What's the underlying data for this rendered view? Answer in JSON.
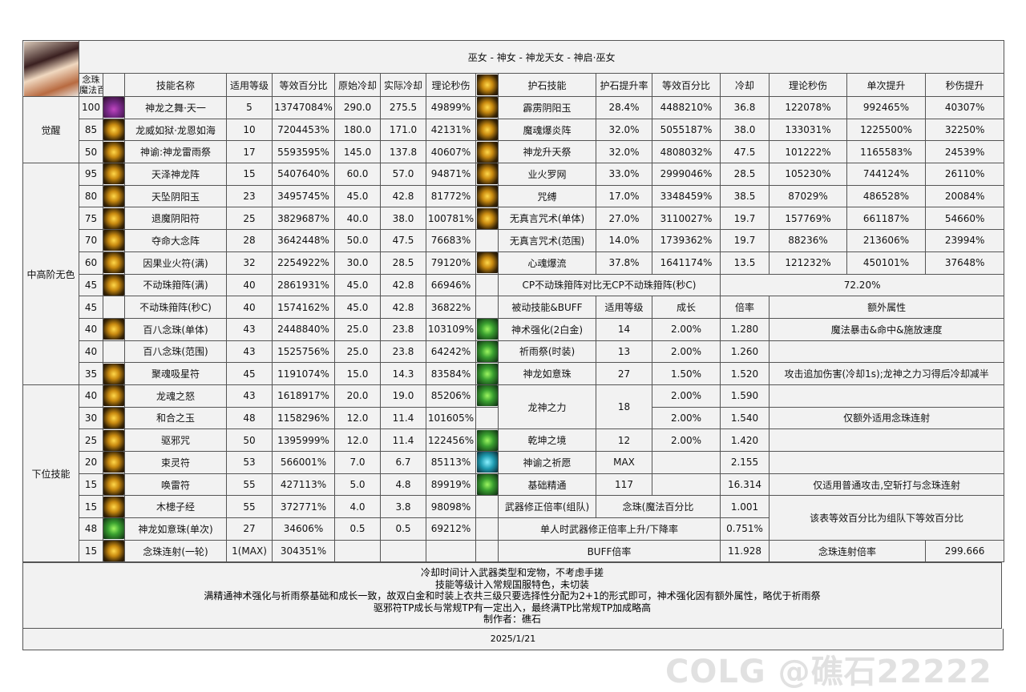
{
  "title": "巫女 - 神女 - 神龙天女 - 神启·巫女",
  "left_header": {
    "orb": "念珠",
    "orb2": "魔法百分比",
    "name": "技能名称",
    "level": "适用等级",
    "pct": "等效百分比",
    "base_cd": "原始冷却",
    "real_cd": "实际冷却",
    "dps": "理论秒伤"
  },
  "skill_groups": [
    {
      "category": "觉醒",
      "skills": [
        {
          "orb": "100",
          "icon": "purple",
          "name": "神龙之舞·天一",
          "level": "5",
          "pct": "13747084%",
          "base_cd": "290.0",
          "real_cd": "275.5",
          "dps": "49899%"
        },
        {
          "orb": "85",
          "icon": "gold",
          "name": "龙威如狱·龙恩如海",
          "level": "10",
          "pct": "7204453%",
          "base_cd": "180.0",
          "real_cd": "171.0",
          "dps": "42131%"
        },
        {
          "orb": "50",
          "icon": "gold",
          "name": "神谕:神龙雷雨祭",
          "level": "17",
          "pct": "5593595%",
          "base_cd": "145.0",
          "real_cd": "137.8",
          "dps": "40607%"
        }
      ]
    },
    {
      "category": "中高阶无色",
      "skills": [
        {
          "orb": "95",
          "icon": "gold",
          "name": "天泽神龙阵",
          "level": "15",
          "pct": "5407640%",
          "base_cd": "60.0",
          "real_cd": "57.0",
          "dps": "94871%"
        },
        {
          "orb": "80",
          "icon": "gold",
          "name": "天坠阴阳玉",
          "level": "23",
          "pct": "3495745%",
          "base_cd": "45.0",
          "real_cd": "42.8",
          "dps": "81772%"
        },
        {
          "orb": "75",
          "icon": "gold",
          "name": "退魔阴阳符",
          "level": "25",
          "pct": "3829687%",
          "base_cd": "40.0",
          "real_cd": "38.0",
          "dps": "100781%"
        },
        {
          "orb": "70",
          "icon": "gold",
          "name": "夺命大念阵",
          "level": "28",
          "pct": "3642448%",
          "base_cd": "50.0",
          "real_cd": "47.5",
          "dps": "76683%"
        },
        {
          "orb": "60",
          "icon": "gold",
          "name": "因果业火符(满)",
          "level": "32",
          "pct": "2254922%",
          "base_cd": "30.0",
          "real_cd": "28.5",
          "dps": "79120%"
        },
        {
          "orb": "45",
          "icon": "gold",
          "name": "不动珠箝阵(满)",
          "level": "40",
          "pct": "2861931%",
          "base_cd": "45.0",
          "real_cd": "42.8",
          "dps": "66946%"
        },
        {
          "orb": "45",
          "icon": null,
          "name": "不动珠箝阵(秒C)",
          "level": "40",
          "pct": "1574162%",
          "base_cd": "45.0",
          "real_cd": "42.8",
          "dps": "36822%"
        },
        {
          "orb": "40",
          "icon": "gold",
          "name": "百八念珠(单体)",
          "level": "43",
          "pct": "2448840%",
          "base_cd": "25.0",
          "real_cd": "23.8",
          "dps": "103109%"
        },
        {
          "orb": "40",
          "icon": null,
          "name": "百八念珠(范围)",
          "level": "43",
          "pct": "1525756%",
          "base_cd": "25.0",
          "real_cd": "23.8",
          "dps": "64242%"
        },
        {
          "orb": "35",
          "icon": "gold",
          "name": "聚魂吸星符",
          "level": "45",
          "pct": "1191074%",
          "base_cd": "15.0",
          "real_cd": "14.3",
          "dps": "83584%"
        }
      ]
    },
    {
      "category": "下位技能",
      "skills": [
        {
          "orb": "40",
          "icon": "gold",
          "name": "龙魂之怒",
          "level": "43",
          "pct": "1618917%",
          "base_cd": "20.0",
          "real_cd": "19.0",
          "dps": "85206%"
        },
        {
          "orb": "30",
          "icon": "gold",
          "name": "和合之玉",
          "level": "48",
          "pct": "1158296%",
          "base_cd": "12.0",
          "real_cd": "11.4",
          "dps": "101605%"
        },
        {
          "orb": "25",
          "icon": "gold",
          "name": "驱邪咒",
          "level": "50",
          "pct": "1395999%",
          "base_cd": "12.0",
          "real_cd": "11.4",
          "dps": "122456%"
        },
        {
          "orb": "20",
          "icon": "gold",
          "name": "束灵符",
          "level": "53",
          "pct": "566001%",
          "base_cd": "7.0",
          "real_cd": "6.7",
          "dps": "85113%"
        },
        {
          "orb": "15",
          "icon": "gold",
          "name": "唤雷符",
          "level": "55",
          "pct": "427113%",
          "base_cd": "5.0",
          "real_cd": "4.8",
          "dps": "89919%"
        },
        {
          "orb": "15",
          "icon": "gold",
          "name": "木槵子经",
          "level": "55",
          "pct": "372771%",
          "base_cd": "4.0",
          "real_cd": "3.8",
          "dps": "98098%"
        },
        {
          "orb": "48",
          "icon": "green",
          "name": "神龙如意珠(单次)",
          "level": "27",
          "pct": "34606%",
          "base_cd": "0.5",
          "real_cd": "0.5",
          "dps": "69212%"
        },
        {
          "orb": "15",
          "icon": "gold",
          "name": "念珠连射(一轮)",
          "level": "1(MAX)",
          "pct": "304351%",
          "base_cd": "",
          "real_cd": "",
          "dps": ""
        }
      ]
    }
  ],
  "talisman": {
    "header": {
      "icon": "gold",
      "name": "护石技能",
      "rate": "护石提升率",
      "pct": "等效百分比",
      "cd": "冷却",
      "dps": "理论秒伤",
      "single": "单次提升",
      "dps_up": "秒伤提升"
    },
    "rows": [
      {
        "icon": "gold",
        "name": "霹雳阴阳玉",
        "rate": "28.4%",
        "pct": "4488210%",
        "cd": "36.8",
        "dps": "122078%",
        "single": "992465%",
        "dps_up": "40307%"
      },
      {
        "icon": "gold",
        "name": "魔魂爆炎阵",
        "rate": "32.0%",
        "pct": "5055187%",
        "cd": "38.0",
        "dps": "133031%",
        "single": "1225500%",
        "dps_up": "32250%"
      },
      {
        "icon": "gold",
        "name": "神龙升天祭",
        "rate": "32.0%",
        "pct": "4808032%",
        "cd": "47.5",
        "dps": "101222%",
        "single": "1165583%",
        "dps_up": "24539%"
      },
      {
        "icon": "gold",
        "name": "业火罗网",
        "rate": "33.0%",
        "pct": "2999046%",
        "cd": "28.5",
        "dps": "105230%",
        "single": "744124%",
        "dps_up": "26110%"
      },
      {
        "icon": "gold",
        "name": "咒缚",
        "rate": "17.0%",
        "pct": "3348459%",
        "cd": "38.5",
        "dps": "87029%",
        "single": "486528%",
        "dps_up": "20084%"
      },
      {
        "icon": "gold",
        "name": "无真言咒术(单体)",
        "rate": "27.0%",
        "pct": "3110027%",
        "cd": "19.7",
        "dps": "157769%",
        "single": "661187%",
        "dps_up": "54660%"
      },
      {
        "icon": null,
        "name": "无真言咒术(范围)",
        "rate": "14.0%",
        "pct": "1739362%",
        "cd": "19.7",
        "dps": "88236%",
        "single": "213606%",
        "dps_up": "23994%"
      },
      {
        "icon": "gold",
        "name": "心魂爆流",
        "rate": "37.8%",
        "pct": "1641174%",
        "cd": "13.5",
        "dps": "121232%",
        "single": "450101%",
        "dps_up": "37648%"
      }
    ]
  },
  "cp_compare": {
    "label": "CP不动珠箝阵对比无CP不动珠箝阵(秒C)",
    "value": "72.20%"
  },
  "passive": {
    "header": {
      "name": "被动技能&BUFF",
      "level": "适用等级",
      "growth": "成长",
      "rate": "倍率",
      "extra": "额外属性"
    },
    "rows": [
      {
        "icon": "green",
        "name": "神术强化(2白金)",
        "level": "14",
        "growth": "2.00%",
        "rate": "1.280",
        "extra": "魔法暴击&命中&施放速度"
      },
      {
        "icon": "green",
        "name": "祈雨祭(时装)",
        "level": "13",
        "growth": "2.00%",
        "rate": "1.260",
        "extra": ""
      },
      {
        "icon": "green",
        "name": "神龙如意珠",
        "level": "27",
        "growth": "1.50%",
        "rate": "1.520",
        "extra": "攻击追加伤害(冷却1s);龙神之力习得后冷却减半"
      },
      {
        "icon": "green",
        "name": "龙神之力",
        "level": "18",
        "sub": [
          {
            "growth": "2.00%",
            "rate": "1.590",
            "extra": ""
          },
          {
            "growth": "2.00%",
            "rate": "1.540",
            "extra": "仅额外适用念珠连射"
          }
        ]
      },
      {
        "icon": "green",
        "name": "乾坤之境",
        "level": "12",
        "growth": "2.00%",
        "rate": "1.420",
        "extra": ""
      },
      {
        "icon": "cyan",
        "name": "神谕之祈愿",
        "level": "MAX",
        "growth": "",
        "rate": "2.155",
        "extra": ""
      },
      {
        "icon": "green",
        "name": "基础精通",
        "level": "117",
        "growth": "",
        "rate": "16.314",
        "extra": "仅适用普通攻击,空斩打与念珠连射"
      }
    ]
  },
  "weapon": {
    "label": "武器修正倍率(组队)",
    "type": "念珠(魔法百分比",
    "rate": "1.001",
    "note": "该表等效百分比为组队下等效百分比",
    "solo_label": "单人时武器修正倍率上升/下降率",
    "solo_value": "0.751%"
  },
  "buff": {
    "label": "BUFF倍率",
    "value": "11.928",
    "orb_label": "念珠连射倍率",
    "orb_value": "299.666"
  },
  "notes": [
    "冷却时间计入武器类型和宠物，不考虑手搓",
    "技能等级计入常规国服特色，未切装",
    "满精通神术强化与祈雨祭基础和成长一致，故双白金和时装上衣共三级只要选择性分配为2+1的形式即可，神术强化因有额外属性，略优于祈雨祭",
    "驱邪符TP成长与常规TP有一定出入，最终满TP比常规TP加成略高",
    "制作者：礁石"
  ],
  "date": "2025/1/21",
  "watermark": "COLG @礁石22222"
}
